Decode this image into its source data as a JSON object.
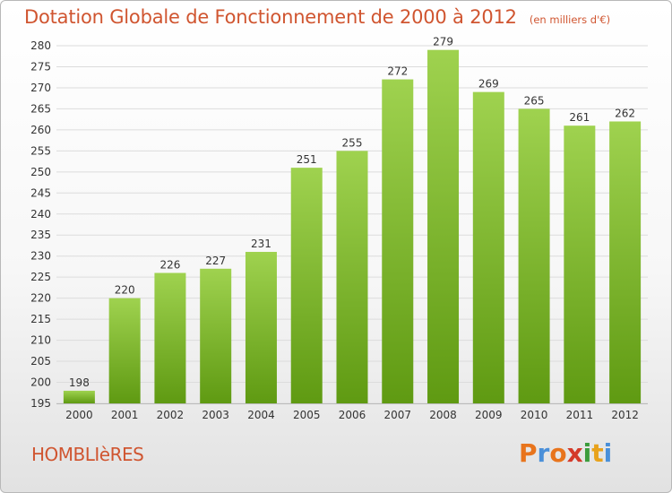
{
  "title": "Dotation Globale de Fonctionnement de 2000 à 2012",
  "subtitle": "(en milliers d'€)",
  "commune": "HOMBLIèRES",
  "logo": {
    "letters": [
      "P",
      "r",
      "o",
      "x",
      "i",
      "t",
      "i"
    ],
    "colors": [
      "#e8741c",
      "#4a90d9",
      "#e8741c",
      "#d43a2a",
      "#3c9c3c",
      "#e8a21c",
      "#4a90d9"
    ]
  },
  "colors": {
    "bar_top": "#9fd24f",
    "bar_bottom": "#5f9a12",
    "grid": "#dcdcdc",
    "axis_text": "#333333"
  },
  "chart_data": {
    "type": "bar",
    "title": "Dotation Globale de Fonctionnement de 2000 à 2012",
    "subtitle": "(en milliers d'€)",
    "categories": [
      "2000",
      "2001",
      "2002",
      "2003",
      "2004",
      "2005",
      "2006",
      "2007",
      "2008",
      "2009",
      "2010",
      "2011",
      "2012"
    ],
    "values": [
      198,
      220,
      226,
      227,
      231,
      251,
      255,
      272,
      279,
      269,
      265,
      261,
      262
    ],
    "ylim": [
      195,
      280
    ],
    "yticks": [
      195,
      200,
      205,
      210,
      215,
      220,
      225,
      230,
      235,
      240,
      245,
      250,
      255,
      260,
      265,
      270,
      275,
      280
    ],
    "grid": true,
    "data_labels": true
  }
}
